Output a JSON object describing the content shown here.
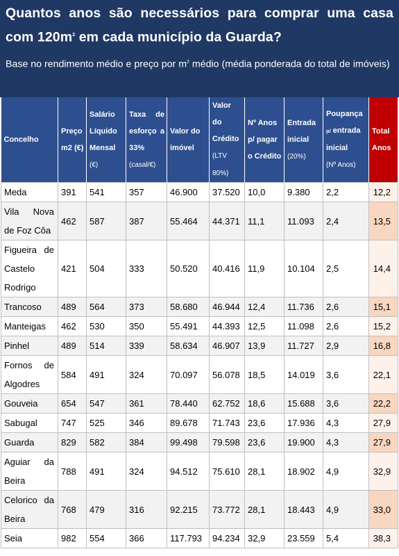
{
  "header": {
    "title": "Quantos anos são necessários para comprar uma casa com 120m",
    "title_sup": "2",
    "title_end": " em cada município da Guarda?",
    "subtitle_start": "Base no rendimento médio e preço por m",
    "subtitle_sup": "2",
    "subtitle_end": " médio (média ponderada do total de imóveis)"
  },
  "columns": {
    "concelho": "Concelho",
    "preco": "Preço m2 (€)",
    "salario": "Salário Líquido Mensal",
    "salario_unit": "(€)",
    "taxa": "Taxa de esforço a 33%",
    "taxa_unit": "(casal/€)",
    "valor_imovel": "Valor do imóvel",
    "valor_credito": "Valor do Crédito",
    "valor_credito_unit": "(LTV 80%)",
    "anos_credito": "Nº Anos p/ pagar o Crédito",
    "entrada": "Entrada inicial",
    "entrada_unit": "(20%)",
    "poupanca_a": "Poupança ",
    "poupanca_sub": "p/",
    "poupanca_b": " entrada inicial",
    "poupanca_unit": "(Nº Anos)",
    "total": "Total Anos"
  },
  "colors": {
    "header_bg": "#1f3864",
    "column_header_bg": "#2e4f8f",
    "total_header_bg": "#c00000"
  },
  "rows": [
    {
      "concelho": "Meda",
      "preco": "391",
      "salario": "541",
      "taxa": "357",
      "valor_imovel": "46.900",
      "valor_credito": "37.520",
      "anos_credito": "10,0",
      "entrada": "9.380",
      "poupanca": "2,2",
      "total": "12,2",
      "total_color": "#fdf1ea"
    },
    {
      "concelho": "Vila Nova de Foz Côa",
      "preco": "462",
      "salario": "587",
      "taxa": "387",
      "valor_imovel": "55.464",
      "valor_credito": "44.371",
      "anos_credito": "11,1",
      "entrada": "11.093",
      "poupanca": "2,4",
      "total": "13,5",
      "total_color": "#f9d6c0"
    },
    {
      "concelho": "Figueira de Castelo Rodrigo",
      "preco": "421",
      "salario": "504",
      "taxa": "333",
      "valor_imovel": "50.520",
      "valor_credito": "40.416",
      "anos_credito": "11,9",
      "entrada": "10.104",
      "poupanca": "2,5",
      "total": "14,4",
      "total_color": "#fdf1ea"
    },
    {
      "concelho": "Trancoso",
      "preco": "489",
      "salario": "564",
      "taxa": "373",
      "valor_imovel": "58.680",
      "valor_credito": "46.944",
      "anos_credito": "12,4",
      "entrada": "11.736",
      "poupanca": "2,6",
      "total": "15,1",
      "total_color": "#f9d6c0"
    },
    {
      "concelho": "Manteigas",
      "preco": "462",
      "salario": "530",
      "taxa": "350",
      "valor_imovel": "55.491",
      "valor_credito": "44.393",
      "anos_credito": "12,5",
      "entrada": "11.098",
      "poupanca": "2,6",
      "total": "15,2",
      "total_color": "#fdf1ea"
    },
    {
      "concelho": "Pinhel",
      "preco": "489",
      "salario": "514",
      "taxa": "339",
      "valor_imovel": "58.634",
      "valor_credito": "46.907",
      "anos_credito": "13,9",
      "entrada": "11.727",
      "poupanca": "2,9",
      "total": "16,8",
      "total_color": "#f9d6c0"
    },
    {
      "concelho": "Fornos de Algodres",
      "preco": "584",
      "salario": "491",
      "taxa": "324",
      "valor_imovel": "70.097",
      "valor_credito": "56.078",
      "anos_credito": "18,5",
      "entrada": "14.019",
      "poupanca": "3,6",
      "total": "22,1",
      "total_color": "#fdf1ea"
    },
    {
      "concelho": "Gouveia",
      "preco": "654",
      "salario": "547",
      "taxa": "361",
      "valor_imovel": "78.440",
      "valor_credito": "62.752",
      "anos_credito": "18,6",
      "entrada": "15.688",
      "poupanca": "3,6",
      "total": "22,2",
      "total_color": "#f9d6c0"
    },
    {
      "concelho": "Sabugal",
      "preco": "747",
      "salario": "525",
      "taxa": "346",
      "valor_imovel": "89.678",
      "valor_credito": "71.743",
      "anos_credito": "23,6",
      "entrada": "17.936",
      "poupanca": "4,3",
      "total": "27,9",
      "total_color": "#fdf1ea"
    },
    {
      "concelho": "Guarda",
      "preco": "829",
      "salario": "582",
      "taxa": "384",
      "valor_imovel": "99.498",
      "valor_credito": "79.598",
      "anos_credito": "23,6",
      "entrada": "19.900",
      "poupanca": "4,3",
      "total": "27,9",
      "total_color": "#f9d6c0"
    },
    {
      "concelho": "Aguiar da Beira",
      "preco": "788",
      "salario": "491",
      "taxa": "324",
      "valor_imovel": "94.512",
      "valor_credito": "75.610",
      "anos_credito": "28,1",
      "entrada": "18.902",
      "poupanca": "4,9",
      "total": "32,9",
      "total_color": "#fdf1ea"
    },
    {
      "concelho": "Celorico da Beira",
      "preco": "768",
      "salario": "479",
      "taxa": "316",
      "valor_imovel": "92.215",
      "valor_credito": "73.772",
      "anos_credito": "28,1",
      "entrada": "18.443",
      "poupanca": "4,9",
      "total": "33,0",
      "total_color": "#f9d6c0"
    },
    {
      "concelho": "Seia",
      "preco": "982",
      "salario": "554",
      "taxa": "366",
      "valor_imovel": "117.793",
      "valor_credito": "94.234",
      "anos_credito": "32,9",
      "entrada": "23.559",
      "poupanca": "5,4",
      "total": "38,3",
      "total_color": "#fdf1ea"
    }
  ]
}
